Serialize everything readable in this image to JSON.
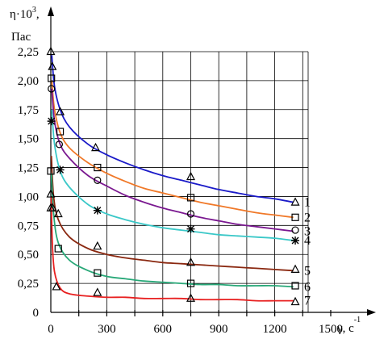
{
  "chart_data": {
    "type": "line",
    "y_axis_label": {
      "line1_base": "η·10",
      "line1_exp": "3",
      "line1_end": ",",
      "line2": "Пас"
    },
    "x_axis_label": {
      "base": "γ, с",
      "exp": "-1"
    },
    "xlim": [
      0,
      1500
    ],
    "ylim": [
      0,
      2.25
    ],
    "x_ticks": [
      0,
      300,
      600,
      900,
      1200,
      1500
    ],
    "x_tick_labels": [
      "0",
      "300",
      "600",
      "900",
      "1200",
      "1500"
    ],
    "y_ticks": [
      0,
      0.25,
      0.5,
      0.75,
      1.0,
      1.25,
      1.5,
      1.75,
      2.0,
      2.25
    ],
    "y_tick_labels": [
      "0",
      "0,25",
      "0,50",
      "0,75",
      "1,00",
      "1,25",
      "1,50",
      "1,75",
      "2,00",
      "2,25"
    ],
    "grid": true,
    "series": [
      {
        "name": "1",
        "marker": "triangle",
        "color": "#1a1ac8",
        "curve": [
          [
            5,
            2.22
          ],
          [
            20,
            1.95
          ],
          [
            50,
            1.75
          ],
          [
            100,
            1.6
          ],
          [
            200,
            1.45
          ],
          [
            300,
            1.36
          ],
          [
            400,
            1.29
          ],
          [
            500,
            1.23
          ],
          [
            600,
            1.18
          ],
          [
            700,
            1.14
          ],
          [
            800,
            1.1
          ],
          [
            900,
            1.06
          ],
          [
            1000,
            1.03
          ],
          [
            1100,
            1.0
          ],
          [
            1200,
            0.98
          ],
          [
            1300,
            0.95
          ]
        ],
        "points": [
          [
            0,
            2.25
          ],
          [
            8,
            2.12
          ],
          [
            50,
            1.73
          ],
          [
            240,
            1.42
          ],
          [
            750,
            1.17
          ],
          [
            1310,
            0.95
          ]
        ]
      },
      {
        "name": "2",
        "marker": "square",
        "color": "#f07828",
        "curve": [
          [
            5,
            2.0
          ],
          [
            20,
            1.75
          ],
          [
            50,
            1.55
          ],
          [
            100,
            1.42
          ],
          [
            200,
            1.29
          ],
          [
            300,
            1.2
          ],
          [
            400,
            1.13
          ],
          [
            500,
            1.07
          ],
          [
            600,
            1.03
          ],
          [
            700,
            0.99
          ],
          [
            800,
            0.95
          ],
          [
            900,
            0.92
          ],
          [
            1000,
            0.89
          ],
          [
            1100,
            0.86
          ],
          [
            1200,
            0.84
          ],
          [
            1300,
            0.82
          ]
        ],
        "points": [
          [
            3,
            2.02
          ],
          [
            50,
            1.56
          ],
          [
            250,
            1.25
          ],
          [
            750,
            0.99
          ],
          [
            1310,
            0.82
          ]
        ]
      },
      {
        "name": "3",
        "marker": "circle",
        "color": "#7a1890",
        "curve": [
          [
            5,
            1.93
          ],
          [
            20,
            1.65
          ],
          [
            50,
            1.45
          ],
          [
            100,
            1.33
          ],
          [
            200,
            1.18
          ],
          [
            300,
            1.09
          ],
          [
            400,
            1.01
          ],
          [
            500,
            0.95
          ],
          [
            600,
            0.9
          ],
          [
            700,
            0.86
          ],
          [
            800,
            0.82
          ],
          [
            900,
            0.79
          ],
          [
            1000,
            0.76
          ],
          [
            1100,
            0.74
          ],
          [
            1200,
            0.72
          ],
          [
            1300,
            0.7
          ]
        ],
        "points": [
          [
            3,
            1.93
          ],
          [
            45,
            1.45
          ],
          [
            250,
            1.14
          ],
          [
            750,
            0.85
          ],
          [
            1310,
            0.71
          ]
        ]
      },
      {
        "name": "4",
        "marker": "star",
        "color": "#3ac8c8",
        "curve": [
          [
            5,
            1.75
          ],
          [
            20,
            1.45
          ],
          [
            50,
            1.22
          ],
          [
            100,
            1.08
          ],
          [
            200,
            0.93
          ],
          [
            300,
            0.85
          ],
          [
            400,
            0.8
          ],
          [
            500,
            0.76
          ],
          [
            600,
            0.73
          ],
          [
            700,
            0.71
          ],
          [
            800,
            0.69
          ],
          [
            900,
            0.67
          ],
          [
            1000,
            0.66
          ],
          [
            1100,
            0.65
          ],
          [
            1200,
            0.64
          ],
          [
            1300,
            0.62
          ]
        ],
        "points": [
          [
            3,
            1.65
          ],
          [
            50,
            1.23
          ],
          [
            250,
            0.88
          ],
          [
            750,
            0.72
          ],
          [
            1310,
            0.62
          ]
        ]
      },
      {
        "name": "5",
        "marker": "triangle",
        "color": "#8a2810",
        "curve": [
          [
            3,
            1.35
          ],
          [
            15,
            1.0
          ],
          [
            40,
            0.8
          ],
          [
            100,
            0.65
          ],
          [
            200,
            0.55
          ],
          [
            300,
            0.5
          ],
          [
            400,
            0.47
          ],
          [
            500,
            0.45
          ],
          [
            600,
            0.43
          ],
          [
            700,
            0.42
          ],
          [
            800,
            0.41
          ],
          [
            900,
            0.4
          ],
          [
            1000,
            0.39
          ],
          [
            1100,
            0.38
          ],
          [
            1200,
            0.37
          ],
          [
            1300,
            0.36
          ]
        ],
        "points": [
          [
            0,
            1.02
          ],
          [
            10,
            0.9
          ],
          [
            40,
            0.85
          ],
          [
            250,
            0.57
          ],
          [
            750,
            0.43
          ],
          [
            1310,
            0.37
          ]
        ]
      },
      {
        "name": "6",
        "marker": "square",
        "color": "#28a878",
        "curve": [
          [
            3,
            1.2
          ],
          [
            15,
            0.85
          ],
          [
            40,
            0.6
          ],
          [
            100,
            0.45
          ],
          [
            200,
            0.36
          ],
          [
            300,
            0.31
          ],
          [
            400,
            0.29
          ],
          [
            500,
            0.27
          ],
          [
            600,
            0.26
          ],
          [
            700,
            0.25
          ],
          [
            800,
            0.24
          ],
          [
            900,
            0.24
          ],
          [
            1000,
            0.23
          ],
          [
            1100,
            0.23
          ],
          [
            1200,
            0.23
          ],
          [
            1300,
            0.22
          ]
        ],
        "points": [
          [
            0,
            1.22
          ],
          [
            40,
            0.55
          ],
          [
            250,
            0.34
          ],
          [
            750,
            0.25
          ],
          [
            1310,
            0.23
          ]
        ]
      },
      {
        "name": "7",
        "marker": "triangle",
        "color": "#e82020",
        "curve": [
          [
            2,
            1.0
          ],
          [
            8,
            0.6
          ],
          [
            20,
            0.35
          ],
          [
            50,
            0.21
          ],
          [
            100,
            0.16
          ],
          [
            200,
            0.14
          ],
          [
            300,
            0.13
          ],
          [
            400,
            0.13
          ],
          [
            500,
            0.12
          ],
          [
            600,
            0.12
          ],
          [
            700,
            0.12
          ],
          [
            800,
            0.11
          ],
          [
            900,
            0.11
          ],
          [
            1000,
            0.11
          ],
          [
            1100,
            0.1
          ],
          [
            1200,
            0.1
          ],
          [
            1300,
            0.1
          ]
        ],
        "points": [
          [
            0,
            0.9
          ],
          [
            30,
            0.22
          ],
          [
            250,
            0.17
          ],
          [
            750,
            0.12
          ],
          [
            1310,
            0.09
          ]
        ]
      }
    ]
  }
}
